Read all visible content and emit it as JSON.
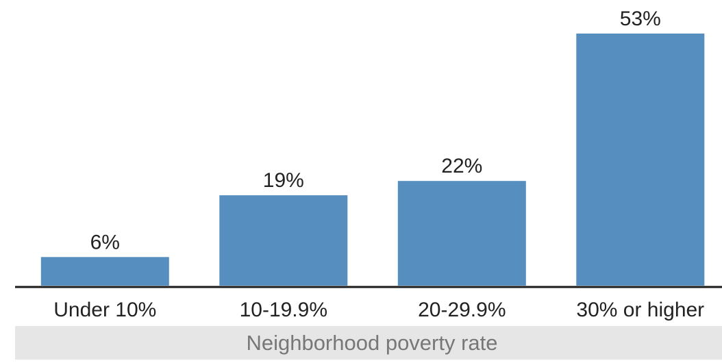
{
  "chart_data": {
    "type": "bar",
    "categories": [
      "Under 10%",
      "10-19.9%",
      "20-29.9%",
      "30% or higher"
    ],
    "values": [
      6,
      19,
      22,
      53
    ],
    "value_labels": [
      "6%",
      "19%",
      "22%",
      "53%"
    ],
    "xlabel": "Neighborhood poverty rate",
    "ylim": [
      0,
      53
    ],
    "grid": false,
    "legend": "none",
    "colors": {
      "bar": "#568fbf",
      "axis": "#1a1a1a",
      "text": "#222222",
      "xlabel_band": "#e6e6e6",
      "xlabel_text": "#777777"
    }
  }
}
